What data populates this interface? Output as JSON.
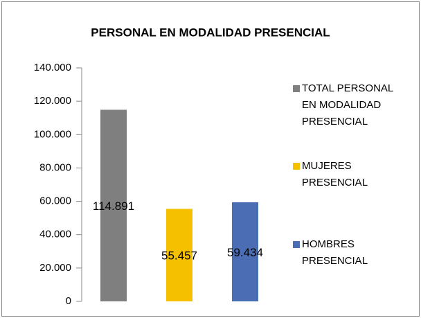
{
  "chart_data": {
    "type": "bar",
    "title": "PERSONAL EN MODALIDAD PRESENCIAL",
    "series": [
      {
        "name": "TOTAL PERSONAL EN MODALIDAD PRESENCIAL",
        "color": "#7f7f7f",
        "values": [
          114891
        ],
        "value_labels": [
          "114.891"
        ]
      },
      {
        "name": "MUJERES PRESENCIAL",
        "color": "#f5c000",
        "values": [
          55457
        ],
        "value_labels": [
          "55.457"
        ]
      },
      {
        "name": "HOMBRES PRESENCIAL",
        "color": "#4a6db4",
        "values": [
          59434
        ],
        "value_labels": [
          "59.434"
        ]
      }
    ],
    "ylim": [
      0,
      140000
    ],
    "yticks": [
      0,
      {
        "value": 20000,
        "label": "20.000"
      },
      {
        "value": 40000,
        "label": "40.000"
      },
      {
        "value": 60000,
        "label": "60.000"
      },
      {
        "value": 80000,
        "label": "80.000"
      },
      {
        "value": 100000,
        "label": "100.000"
      },
      {
        "value": 120000,
        "label": "120.000"
      },
      {
        "value": 140000,
        "label": "140.000"
      }
    ],
    "grid": false,
    "legend": "right"
  }
}
